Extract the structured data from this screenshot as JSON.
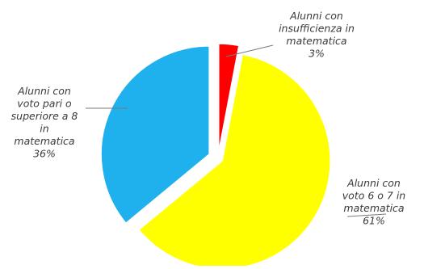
{
  "chart_data": {
    "type": "pie",
    "title": "",
    "legend": "none",
    "series": [
      {
        "categories": [
          "Alunni con insufficienza in matematica",
          "Alunni con voto 6 o 7 in matematica",
          "Alunni con voto pari o superiore a 8 in matematica"
        ],
        "values": [
          3,
          61,
          36
        ],
        "colors": [
          "#ff0000",
          "#ffff00",
          "#1fb0ee"
        ]
      }
    ],
    "labels": [
      [
        "Alunni con",
        "insufficienza in",
        "matematica",
        "3%"
      ],
      [
        "Alunni con",
        "voto 6 o 7 in",
        "matematica",
        "61%"
      ],
      [
        "Alunni con",
        "voto pari o",
        "superiore a 8",
        "in",
        "matematica",
        "36%"
      ]
    ]
  }
}
